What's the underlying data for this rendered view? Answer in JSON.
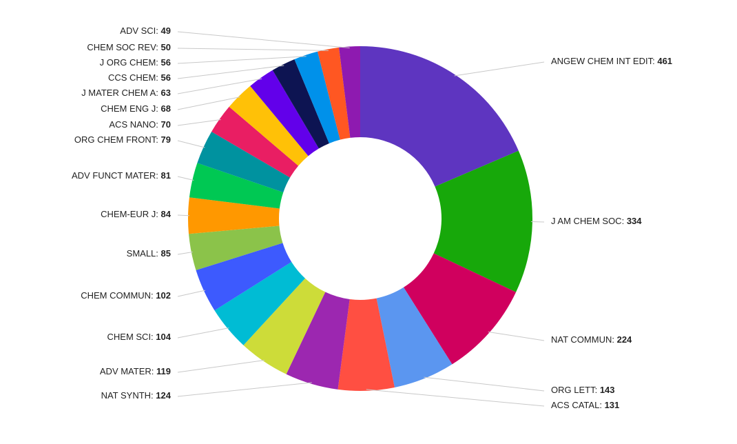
{
  "chart_data": {
    "type": "donut",
    "categories": [
      "ANGEW CHEM INT EDIT:",
      "J AM CHEM SOC:",
      "NAT COMMUN:",
      "ORG LETT:",
      "ACS CATAL:",
      "NAT SYNTH:",
      "ADV MATER:",
      "CHEM SCI:",
      "CHEM COMMUN:",
      "SMALL:",
      "CHEM-EUR J:",
      "ADV FUNCT MATER:",
      "ORG CHEM FRONT:",
      "ACS NANO:",
      "CHEM ENG J:",
      "J MATER CHEM A:",
      "CCS CHEM:",
      "J ORG CHEM:",
      "CHEM SOC REV:",
      "ADV SCI:"
    ],
    "values": [
      461,
      334,
      224,
      143,
      131,
      124,
      119,
      104,
      102,
      85,
      84,
      81,
      79,
      70,
      68,
      63,
      56,
      56,
      50,
      49
    ],
    "colors": [
      "#5e35c0",
      "#17a80a",
      "#d0005e",
      "#5b96f0",
      "#ff4f42",
      "#9c27b0",
      "#cddc39",
      "#00bcd4",
      "#3d5afe",
      "#8bc34a",
      "#ff9800",
      "#00c853",
      "#00929f",
      "#e91e63",
      "#ffc107",
      "#6200ea",
      "#0d1452",
      "#0091ea",
      "#ff5722",
      "#8e1ab0"
    ]
  }
}
